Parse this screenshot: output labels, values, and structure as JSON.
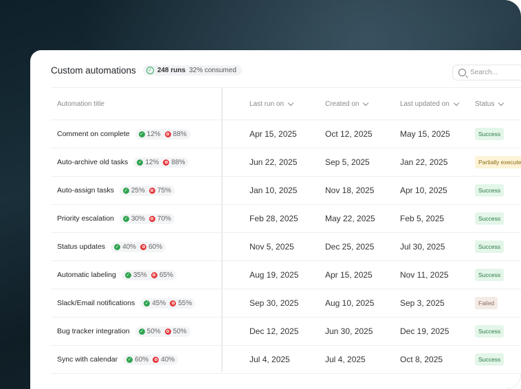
{
  "header": {
    "title": "Custom automations",
    "runs": "248 runs",
    "consumed": "32% consumed"
  },
  "search": {
    "placeholder": "Search..."
  },
  "columns": {
    "title": "Automation title",
    "last_run": "Last run on",
    "created": "Created on",
    "updated": "Last updated on",
    "status": "Status"
  },
  "rows": [
    {
      "name": "Comment on complete",
      "success": "12%",
      "fail": "88%",
      "last_run": "Apr 15, 2025",
      "created": "Oct 12, 2025",
      "updated": "May 15, 2025",
      "status": "Success"
    },
    {
      "name": "Auto-archive old tasks",
      "success": "12%",
      "fail": "88%",
      "last_run": "Jun 22, 2025",
      "created": "Sep 5, 2025",
      "updated": "Jan 22, 2025",
      "status": "Partially execute"
    },
    {
      "name": "Auto-assign tasks",
      "success": "25%",
      "fail": "75%",
      "last_run": "Jan 10, 2025",
      "created": "Nov 18, 2025",
      "updated": "Apr 10, 2025",
      "status": "Success"
    },
    {
      "name": "Priority escalation",
      "success": "30%",
      "fail": "70%",
      "last_run": "Feb 28, 2025",
      "created": "May 22, 2025",
      "updated": "Feb 5, 2025",
      "status": "Success"
    },
    {
      "name": "Status updates",
      "success": "40%",
      "fail": "60%",
      "last_run": "Nov 5, 2025",
      "created": "Dec 25, 2025",
      "updated": "Jul 30, 2025",
      "status": "Success"
    },
    {
      "name": "Automatic labeling",
      "success": "35%",
      "fail": "65%",
      "last_run": "Aug 19, 2025",
      "created": "Apr 15, 2025",
      "updated": "Nov 11, 2025",
      "status": "Success"
    },
    {
      "name": "Slack/Email notifications",
      "success": "45%",
      "fail": "55%",
      "last_run": "Sep 30, 2025",
      "created": "Aug 10, 2025",
      "updated": "Sep 3, 2025",
      "status": "Failed"
    },
    {
      "name": "Bug tracker integration",
      "success": "50%",
      "fail": "50%",
      "last_run": "Dec 12, 2025",
      "created": "Jun 30, 2025",
      "updated": "Dec 19, 2025",
      "status": "Success"
    },
    {
      "name": "Sync with calendar",
      "success": "60%",
      "fail": "40%",
      "last_run": "Jul 4, 2025",
      "created": "Jul 4, 2025",
      "updated": "Oct 8, 2025",
      "status": "Success"
    }
  ],
  "colors": {
    "success_badge": "#e3f6e9",
    "partial_badge": "#fdf3d6",
    "failed_badge": "#f4ebe6",
    "ok_icon": "#2ea44f",
    "fail_icon": "#e5383b"
  }
}
